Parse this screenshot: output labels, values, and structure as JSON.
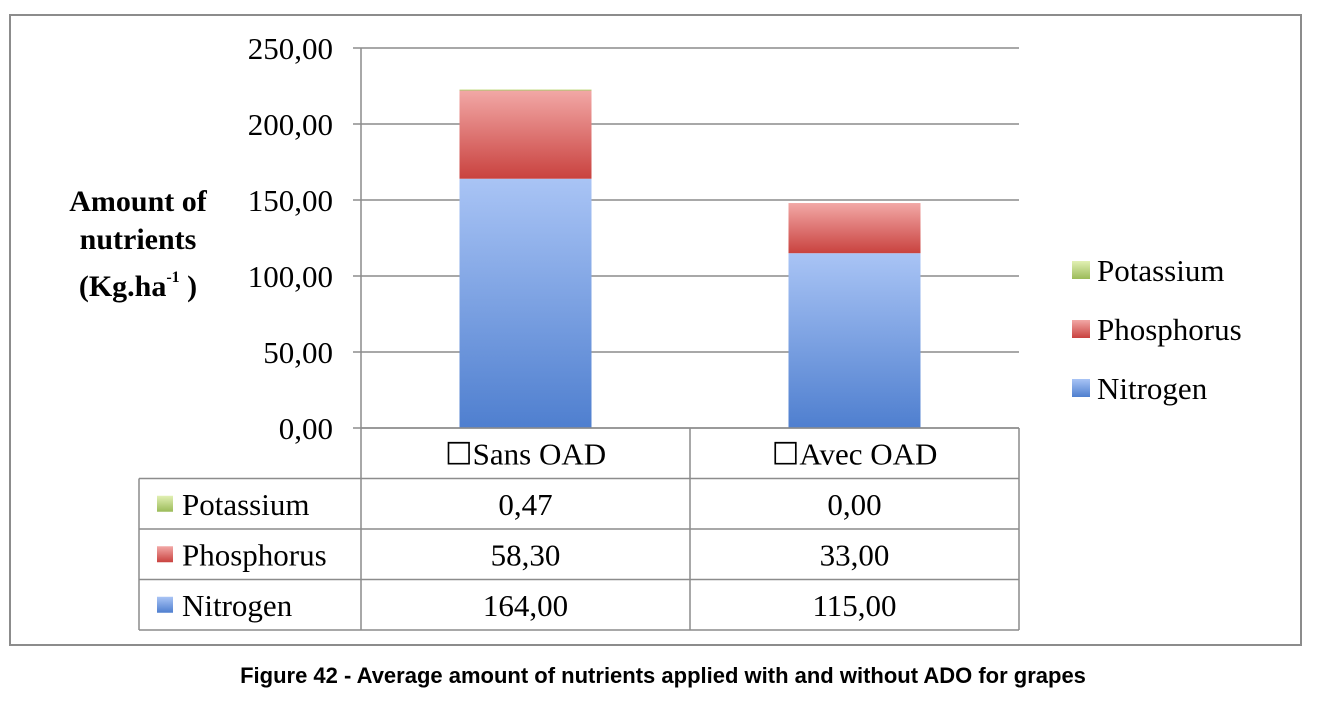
{
  "chart_data": {
    "type": "bar",
    "stacked": true,
    "categories": [
      "☐Sans OAD",
      "☐Avec OAD"
    ],
    "series": [
      {
        "name": "Potassium",
        "values": [
          0.47,
          0.0
        ],
        "display": [
          "0,47",
          "0,00"
        ],
        "color": "#9bbb59"
      },
      {
        "name": "Phosphorus",
        "values": [
          58.3,
          33.0
        ],
        "display": [
          "58,30",
          "33,00"
        ],
        "color": "#c0504d"
      },
      {
        "name": "Nitrogen",
        "values": [
          164.0,
          115.0
        ],
        "display": [
          "164,00",
          "115,00"
        ],
        "color": "#4f81bd"
      }
    ],
    "ylabel_lines": [
      "Amount of",
      "nutrients",
      "(Kg.ha"
    ],
    "ylabel_sup": "-1",
    "ylabel_close": " )",
    "ylim": [
      0,
      250
    ],
    "yticks": [
      "0,00",
      "50,00",
      "100,00",
      "150,00",
      "200,00",
      "250,00"
    ],
    "grid": true,
    "legend_position": "right",
    "data_table": true
  },
  "caption": "Figure 42 - Average amount of nutrients applied with and without ADO for grapes"
}
